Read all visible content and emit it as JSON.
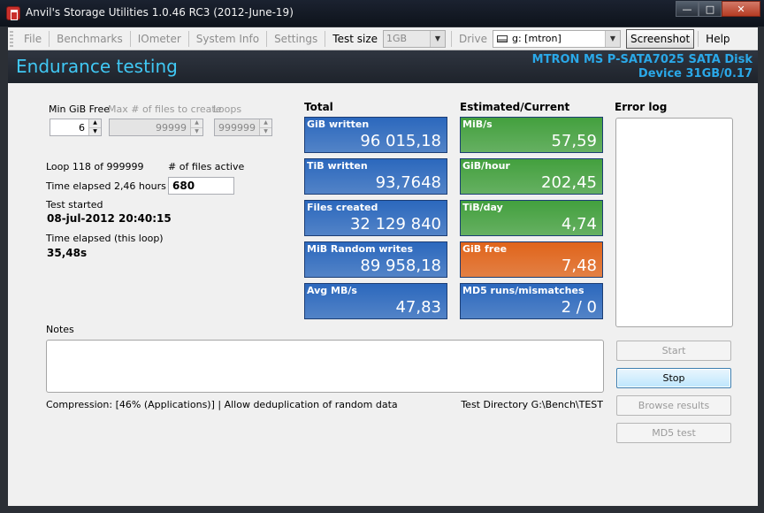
{
  "window": {
    "title": "Anvil's Storage Utilities 1.0.46 RC3 (2012-June-19)",
    "minimize_glyph": "—",
    "maximize_glyph": "□",
    "close_glyph": "✕"
  },
  "toolbar": {
    "menu": [
      "File",
      "Benchmarks",
      "IOmeter",
      "System Info",
      "Settings"
    ],
    "test_size_label": "Test size",
    "test_size_value": "1GB",
    "drive_label": "Drive",
    "drive_value": "g: [mtron]",
    "screenshot_label": "Screenshot",
    "help_label": "Help"
  },
  "header": {
    "title": "Endurance testing",
    "device_line1": "MTRON MS P-SATA7025 SATA Disk",
    "device_line2": "Device 31GB/0.17"
  },
  "settings": {
    "min_gib_free_label": "Min GiB Free",
    "min_gib_free_value": "6",
    "max_files_label": "Max # of files to create",
    "max_files_value": "99999",
    "loops_label": "Loops",
    "loops_value": "999999"
  },
  "status": {
    "loop_text": "Loop 118 of 999999",
    "files_active_label": "# of files active",
    "files_active_value": "680",
    "time_elapsed_text": "Time elapsed 2,46 hours",
    "test_started_label": "Test started",
    "test_started_value": "08-jul-2012 20:40:15",
    "loop_elapsed_label": "Time elapsed (this loop)",
    "loop_elapsed_value": "35,48s"
  },
  "total": {
    "heading": "Total",
    "tiles": [
      {
        "label": "GiB written",
        "value": "96 015,18",
        "color": "#2b68bd"
      },
      {
        "label": "TiB written",
        "value": "93,7648",
        "color": "#2b68bd"
      },
      {
        "label": "Files created",
        "value": "32 129 840",
        "color": "#2b68bd"
      },
      {
        "label": "MiB Random writes",
        "value": "89 958,18",
        "color": "#2b68bd"
      },
      {
        "label": "Avg MB/s",
        "value": "47,83",
        "color": "#2b68bd"
      }
    ]
  },
  "estimated": {
    "heading": "Estimated/Current",
    "tiles": [
      {
        "label": "MiB/s",
        "value": "57,59",
        "color": "#43a03e"
      },
      {
        "label": "GiB/hour",
        "value": "202,45",
        "color": "#43a03e"
      },
      {
        "label": "TiB/day",
        "value": "4,74",
        "color": "#43a03e"
      },
      {
        "label": "GiB free",
        "value": "7,48",
        "color": "#e0641a"
      },
      {
        "label": "MD5 runs/mismatches",
        "value": "2 / 0",
        "color": "#2b68bd"
      }
    ]
  },
  "error_log": {
    "heading": "Error log"
  },
  "notes": {
    "label": "Notes",
    "compression_text": "Compression: [46% (Applications)] | Allow deduplication of random data",
    "test_directory_text": "Test Directory G:\\Bench\\TEST"
  },
  "buttons": {
    "start": "Start",
    "stop": "Stop",
    "browse_results": "Browse results",
    "md5_test": "MD5 test"
  }
}
